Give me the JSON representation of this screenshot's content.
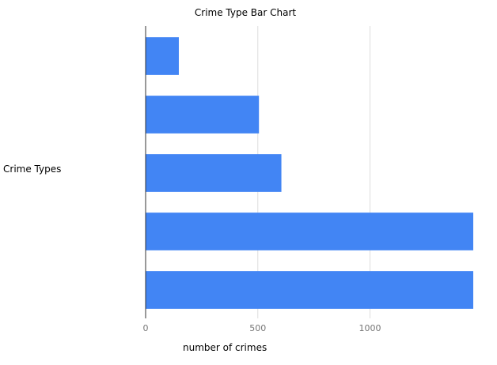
{
  "chart_data": {
    "type": "bar",
    "orientation": "horizontal",
    "title": "Crime Type Bar Chart",
    "xlabel": "number of crimes",
    "ylabel": "Crime Types",
    "categories": [
      "",
      "",
      "",
      "",
      ""
    ],
    "values": [
      148,
      505,
      605,
      1460,
      1460
    ],
    "xlim": [
      0,
      1460
    ],
    "x_ticks": [
      0,
      500,
      1000
    ],
    "grid": true,
    "legend": "none",
    "bar_color": "#4285f4",
    "gridline_color": "#dddddd"
  }
}
